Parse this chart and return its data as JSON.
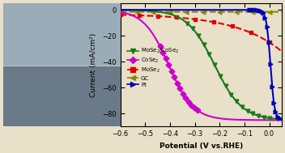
{
  "xlabel": "Potential (V vs.RHE)",
  "ylabel": "Current (mA/cm²)",
  "xlim": [
    -0.6,
    0.05
  ],
  "ylim": [
    -90,
    5
  ],
  "yticks": [
    0,
    -20,
    -40,
    -60,
    -80
  ],
  "xticks": [
    -0.6,
    -0.5,
    -0.4,
    -0.3,
    -0.2,
    -0.1,
    0.0
  ],
  "bg_color": "#e8e0c8",
  "series_colors": {
    "MoSe2CoSe2": "#1a7a1a",
    "CoSe2": "#cc00cc",
    "MoSe2": "#dd0000",
    "GC": "#888800",
    "Pt": "#0000bb"
  }
}
